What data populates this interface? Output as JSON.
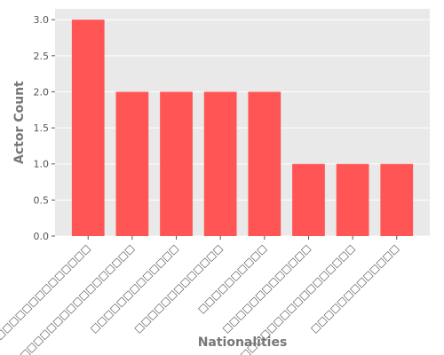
{
  "chart_data": {
    "type": "bar",
    "title": "",
    "xlabel": "Nationalities",
    "ylabel": "Actor Count",
    "categories": [
      "□□□□□□□□□□□□□□",
      "□□□□□□□□□□□□□□□□□□",
      "□□□□□□□□□□□□□",
      "□□□□□□□□□□□□□",
      "□□□□□□□□□□",
      "□□□□□□□□□□□□□",
      "□□□□□□□□□□□□□□□□□",
      "□□□□□□□□□□□□□"
    ],
    "values": [
      3,
      2,
      2,
      2,
      2,
      1,
      1,
      1
    ],
    "ylim": [
      0,
      3.15
    ],
    "yticks": [
      "0.0",
      "0.5",
      "1.0",
      "1.5",
      "2.0",
      "2.5",
      "3.0"
    ],
    "grid": true,
    "bar_color": "#ff5555",
    "background": "#e9e9e9",
    "grid_color": "#ffffff"
  }
}
